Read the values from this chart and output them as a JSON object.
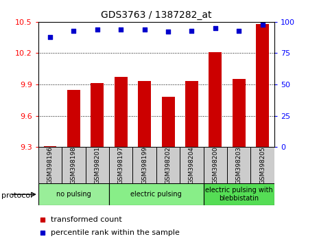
{
  "title": "GDS3763 / 1387282_at",
  "samples": [
    "GSM398196",
    "GSM398198",
    "GSM398201",
    "GSM398197",
    "GSM398199",
    "GSM398202",
    "GSM398204",
    "GSM398200",
    "GSM398203",
    "GSM398205"
  ],
  "bar_values": [
    9.31,
    9.85,
    9.91,
    9.97,
    9.93,
    9.78,
    9.93,
    10.21,
    9.95,
    10.48
  ],
  "percentile_values": [
    88,
    93,
    94,
    94,
    94,
    92,
    93,
    95,
    93,
    98
  ],
  "bar_color": "#cc0000",
  "dot_color": "#0000cc",
  "ylim_left": [
    9.3,
    10.5
  ],
  "ylim_right": [
    0,
    100
  ],
  "yticks_left": [
    9.3,
    9.6,
    9.9,
    10.2,
    10.5
  ],
  "yticks_right": [
    0,
    25,
    50,
    75,
    100
  ],
  "grp_info": [
    {
      "start": 0,
      "end": 2,
      "label": "no pulsing",
      "color": "#99ee99"
    },
    {
      "start": 3,
      "end": 6,
      "label": "electric pulsing",
      "color": "#88ee88"
    },
    {
      "start": 7,
      "end": 9,
      "label": "electric pulsing with\nblebbistatin",
      "color": "#55dd55"
    }
  ],
  "protocol_label": "protocol",
  "legend_bar_label": "transformed count",
  "legend_dot_label": "percentile rank within the sample",
  "tick_bg": "#cccccc",
  "grid_color": "#000000"
}
